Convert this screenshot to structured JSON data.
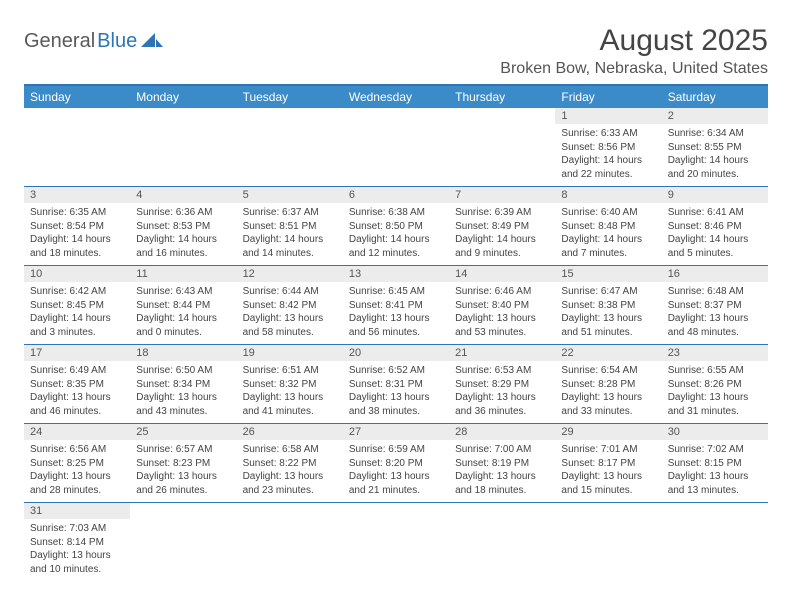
{
  "logo": {
    "part1": "General",
    "part2": "Blue"
  },
  "title": "August 2025",
  "location": "Broken Bow, Nebraska, United States",
  "colors": {
    "header_bg": "#3b8bc9",
    "header_text": "#ffffff",
    "rule": "#2e75b6",
    "daynum_bg": "#ececec",
    "body_text": "#444444",
    "logo_gray": "#5a5a5a",
    "logo_blue": "#2e75b6"
  },
  "weekdays": [
    "Sunday",
    "Monday",
    "Tuesday",
    "Wednesday",
    "Thursday",
    "Friday",
    "Saturday"
  ],
  "layout": {
    "first_weekday_index": 5,
    "days_in_month": 31
  },
  "days": {
    "1": {
      "sunrise": "6:33 AM",
      "sunset": "8:56 PM",
      "daylight": "14 hours and 22 minutes."
    },
    "2": {
      "sunrise": "6:34 AM",
      "sunset": "8:55 PM",
      "daylight": "14 hours and 20 minutes."
    },
    "3": {
      "sunrise": "6:35 AM",
      "sunset": "8:54 PM",
      "daylight": "14 hours and 18 minutes."
    },
    "4": {
      "sunrise": "6:36 AM",
      "sunset": "8:53 PM",
      "daylight": "14 hours and 16 minutes."
    },
    "5": {
      "sunrise": "6:37 AM",
      "sunset": "8:51 PM",
      "daylight": "14 hours and 14 minutes."
    },
    "6": {
      "sunrise": "6:38 AM",
      "sunset": "8:50 PM",
      "daylight": "14 hours and 12 minutes."
    },
    "7": {
      "sunrise": "6:39 AM",
      "sunset": "8:49 PM",
      "daylight": "14 hours and 9 minutes."
    },
    "8": {
      "sunrise": "6:40 AM",
      "sunset": "8:48 PM",
      "daylight": "14 hours and 7 minutes."
    },
    "9": {
      "sunrise": "6:41 AM",
      "sunset": "8:46 PM",
      "daylight": "14 hours and 5 minutes."
    },
    "10": {
      "sunrise": "6:42 AM",
      "sunset": "8:45 PM",
      "daylight": "14 hours and 3 minutes."
    },
    "11": {
      "sunrise": "6:43 AM",
      "sunset": "8:44 PM",
      "daylight": "14 hours and 0 minutes."
    },
    "12": {
      "sunrise": "6:44 AM",
      "sunset": "8:42 PM",
      "daylight": "13 hours and 58 minutes."
    },
    "13": {
      "sunrise": "6:45 AM",
      "sunset": "8:41 PM",
      "daylight": "13 hours and 56 minutes."
    },
    "14": {
      "sunrise": "6:46 AM",
      "sunset": "8:40 PM",
      "daylight": "13 hours and 53 minutes."
    },
    "15": {
      "sunrise": "6:47 AM",
      "sunset": "8:38 PM",
      "daylight": "13 hours and 51 minutes."
    },
    "16": {
      "sunrise": "6:48 AM",
      "sunset": "8:37 PM",
      "daylight": "13 hours and 48 minutes."
    },
    "17": {
      "sunrise": "6:49 AM",
      "sunset": "8:35 PM",
      "daylight": "13 hours and 46 minutes."
    },
    "18": {
      "sunrise": "6:50 AM",
      "sunset": "8:34 PM",
      "daylight": "13 hours and 43 minutes."
    },
    "19": {
      "sunrise": "6:51 AM",
      "sunset": "8:32 PM",
      "daylight": "13 hours and 41 minutes."
    },
    "20": {
      "sunrise": "6:52 AM",
      "sunset": "8:31 PM",
      "daylight": "13 hours and 38 minutes."
    },
    "21": {
      "sunrise": "6:53 AM",
      "sunset": "8:29 PM",
      "daylight": "13 hours and 36 minutes."
    },
    "22": {
      "sunrise": "6:54 AM",
      "sunset": "8:28 PM",
      "daylight": "13 hours and 33 minutes."
    },
    "23": {
      "sunrise": "6:55 AM",
      "sunset": "8:26 PM",
      "daylight": "13 hours and 31 minutes."
    },
    "24": {
      "sunrise": "6:56 AM",
      "sunset": "8:25 PM",
      "daylight": "13 hours and 28 minutes."
    },
    "25": {
      "sunrise": "6:57 AM",
      "sunset": "8:23 PM",
      "daylight": "13 hours and 26 minutes."
    },
    "26": {
      "sunrise": "6:58 AM",
      "sunset": "8:22 PM",
      "daylight": "13 hours and 23 minutes."
    },
    "27": {
      "sunrise": "6:59 AM",
      "sunset": "8:20 PM",
      "daylight": "13 hours and 21 minutes."
    },
    "28": {
      "sunrise": "7:00 AM",
      "sunset": "8:19 PM",
      "daylight": "13 hours and 18 minutes."
    },
    "29": {
      "sunrise": "7:01 AM",
      "sunset": "8:17 PM",
      "daylight": "13 hours and 15 minutes."
    },
    "30": {
      "sunrise": "7:02 AM",
      "sunset": "8:15 PM",
      "daylight": "13 hours and 13 minutes."
    },
    "31": {
      "sunrise": "7:03 AM",
      "sunset": "8:14 PM",
      "daylight": "13 hours and 10 minutes."
    }
  },
  "labels": {
    "sunrise": "Sunrise: ",
    "sunset": "Sunset: ",
    "daylight": "Daylight: "
  }
}
